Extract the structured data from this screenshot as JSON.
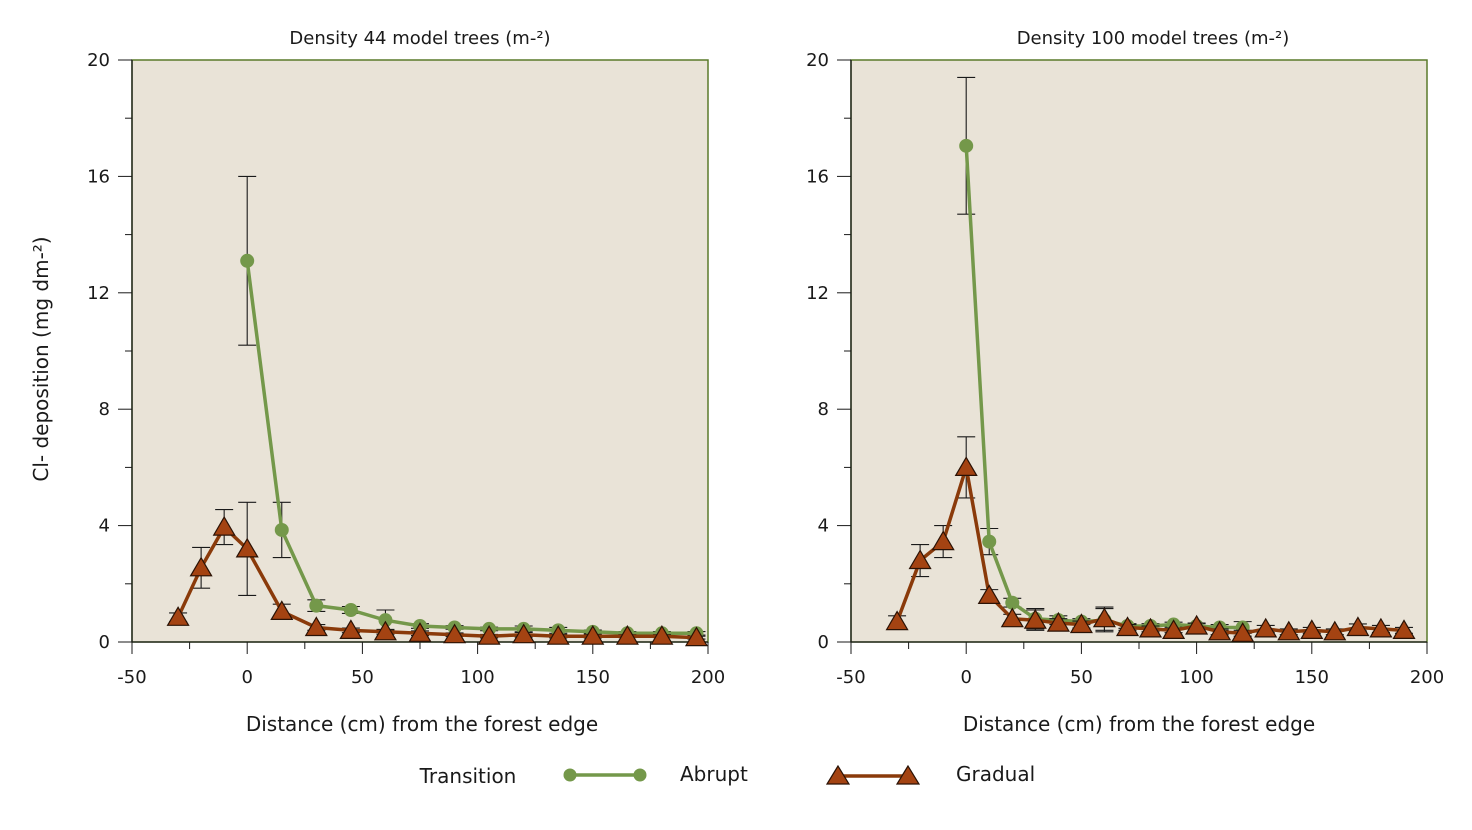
{
  "colors": {
    "abrupt": "#74984a",
    "gradual": "#8a3a0a",
    "gradual_fill": "#a44312",
    "marker_stroke": "#2a1205"
  },
  "legend": {
    "title": "Transition",
    "abrupt_label": "Abrupt",
    "gradual_label": "Gradual"
  },
  "chart_data": [
    {
      "type": "line",
      "title": "Density 44 model trees (m-²)",
      "xlabel": "Distance (cm) from the forest edge",
      "ylabel": "Cl- deposition (mg dm-²)",
      "xlim": [
        -50,
        200
      ],
      "ylim": [
        0,
        20
      ],
      "xticks": [
        -50,
        0,
        50,
        100,
        150,
        200
      ],
      "yticks": [
        0,
        4,
        8,
        12,
        16,
        20
      ],
      "series": [
        {
          "name": "Abrupt",
          "marker": "circle",
          "x": [
            0,
            15,
            30,
            45,
            60,
            75,
            90,
            105,
            120,
            135,
            150,
            165,
            180,
            195
          ],
          "y": [
            13.1,
            3.85,
            1.25,
            1.1,
            0.75,
            0.55,
            0.5,
            0.45,
            0.45,
            0.4,
            0.35,
            0.3,
            0.3,
            0.3
          ],
          "err": [
            2.9,
            0.95,
            0.2,
            0.12,
            0.35,
            0.08,
            0.06,
            0.06,
            0.1,
            0.1,
            0.06,
            0.06,
            0.06,
            0.06
          ]
        },
        {
          "name": "Gradual",
          "marker": "triangle",
          "x": [
            -30,
            -20,
            -10,
            0,
            15,
            30,
            45,
            60,
            75,
            90,
            105,
            120,
            135,
            150,
            165,
            180,
            195
          ],
          "y": [
            0.85,
            2.55,
            3.95,
            3.2,
            1.05,
            0.5,
            0.4,
            0.35,
            0.3,
            0.25,
            0.2,
            0.25,
            0.2,
            0.2,
            0.2,
            0.2,
            0.15
          ],
          "err": [
            0.15,
            0.7,
            0.6,
            1.6,
            0.25,
            0.1,
            0.08,
            0.08,
            0.08,
            0.06,
            0.06,
            0.08,
            0.06,
            0.06,
            0.05,
            0.05,
            0.05
          ]
        }
      ]
    },
    {
      "type": "line",
      "title": "Density 100 model trees (m-²)",
      "xlabel": "Distance (cm) from the forest edge",
      "ylabel": "",
      "xlim": [
        -50,
        200
      ],
      "ylim": [
        0,
        20
      ],
      "xticks": [
        -50,
        0,
        50,
        100,
        150,
        200
      ],
      "yticks": [
        0,
        4,
        8,
        12,
        16,
        20
      ],
      "series": [
        {
          "name": "Abrupt",
          "marker": "circle",
          "x": [
            0,
            10,
            20,
            30,
            40,
            50,
            60,
            70,
            80,
            90,
            100,
            110,
            120
          ],
          "y": [
            17.05,
            3.45,
            1.35,
            0.8,
            0.75,
            0.7,
            0.75,
            0.55,
            0.55,
            0.6,
            0.55,
            0.5,
            0.5
          ],
          "err": [
            2.35,
            0.45,
            0.15,
            0.35,
            0.15,
            0.1,
            0.4,
            0.08,
            0.08,
            0.08,
            0.08,
            0.1,
            0.2
          ]
        },
        {
          "name": "Gradual",
          "marker": "triangle",
          "x": [
            -30,
            -20,
            -10,
            0,
            10,
            20,
            30,
            40,
            50,
            60,
            70,
            80,
            90,
            100,
            110,
            120,
            130,
            140,
            150,
            160,
            170,
            180,
            190
          ],
          "y": [
            0.7,
            2.8,
            3.45,
            6.0,
            1.6,
            0.8,
            0.75,
            0.65,
            0.6,
            0.8,
            0.5,
            0.45,
            0.4,
            0.55,
            0.35,
            0.3,
            0.45,
            0.35,
            0.4,
            0.35,
            0.5,
            0.45,
            0.4
          ],
          "err": [
            0.2,
            0.55,
            0.55,
            1.05,
            0.2,
            0.15,
            0.35,
            0.15,
            0.12,
            0.4,
            0.1,
            0.1,
            0.08,
            0.1,
            0.1,
            0.1,
            0.12,
            0.1,
            0.1,
            0.1,
            0.12,
            0.12,
            0.1
          ]
        }
      ]
    }
  ]
}
